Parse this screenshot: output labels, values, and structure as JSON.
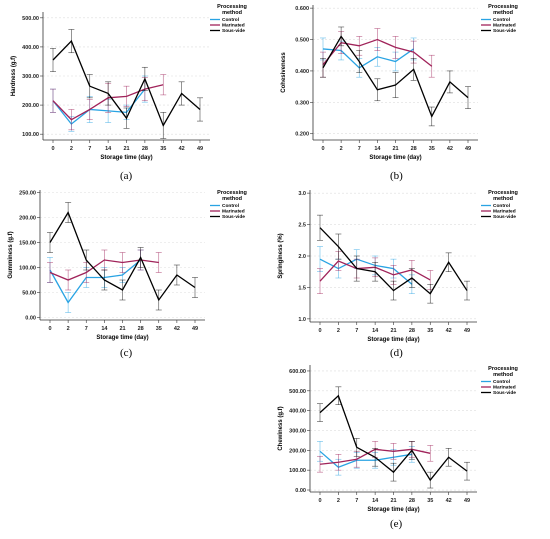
{
  "legend_title_line1": "Processing",
  "legend_title_line2": "method",
  "colors": {
    "Control": "#29a3e3",
    "Marinated": "#a0235a",
    "Sous-vide": "#000000"
  },
  "chart_data": [
    {
      "type": "line",
      "panel_label": "(a)",
      "xlabel": "Storage time (day)",
      "ylabel": "Hardness (g.f)",
      "categories": [
        "0",
        "2",
        "7",
        "14",
        "21",
        "28",
        "35",
        "42",
        "49"
      ],
      "ylim": [
        80,
        520
      ],
      "yticks": [
        "100.00",
        "200.00",
        "300.00",
        "400.00",
        "500.00"
      ],
      "ytick_values": [
        100,
        200,
        300,
        400,
        500
      ],
      "legend": [
        "Control",
        "Marinated",
        "Sous-vide"
      ],
      "series": [
        {
          "name": "Control",
          "values": [
            215,
            135,
            185,
            180,
            175,
            255,
            null,
            null,
            null
          ],
          "errors": [
            40,
            25,
            45,
            40,
            25,
            45,
            null,
            null,
            null
          ]
        },
        {
          "name": "Marinated",
          "values": [
            215,
            150,
            185,
            225,
            230,
            255,
            270,
            null,
            null
          ],
          "errors": [
            40,
            35,
            35,
            50,
            35,
            40,
            35,
            null,
            null
          ]
        },
        {
          "name": "Sous-vide",
          "values": [
            355,
            420,
            265,
            240,
            155,
            290,
            130,
            240,
            185
          ],
          "errors": [
            40,
            40,
            40,
            40,
            35,
            40,
            45,
            40,
            40
          ]
        }
      ]
    },
    {
      "type": "line",
      "panel_label": "(b)",
      "xlabel": "Storage time (day)",
      "ylabel": "Cohesiveness",
      "categories": [
        "0",
        "2",
        "7",
        "14",
        "21",
        "28",
        "35",
        "42",
        "49"
      ],
      "ylim": [
        0.18,
        0.61
      ],
      "yticks": [
        "0.200",
        "0.300",
        "0.400",
        "0.500",
        "0.600"
      ],
      "ytick_values": [
        0.2,
        0.3,
        0.4,
        0.5,
        0.6
      ],
      "legend": [
        "Control",
        "Marinated",
        "Sous-vide"
      ],
      "series": [
        {
          "name": "Control",
          "values": [
            0.47,
            0.465,
            0.41,
            0.445,
            0.43,
            0.47,
            null,
            null,
            null
          ],
          "errors": [
            0.035,
            0.03,
            0.03,
            0.03,
            0.03,
            0.035,
            null,
            null,
            null
          ]
        },
        {
          "name": "Marinated",
          "values": [
            0.42,
            0.49,
            0.48,
            0.5,
            0.475,
            0.46,
            0.415,
            null,
            null
          ],
          "errors": [
            0.04,
            0.035,
            0.03,
            0.035,
            0.035,
            0.035,
            0.035,
            null,
            null
          ]
        },
        {
          "name": "Sous-vide",
          "values": [
            0.41,
            0.51,
            0.43,
            0.34,
            0.355,
            0.405,
            0.255,
            0.365,
            0.315
          ],
          "errors": [
            0.03,
            0.03,
            0.035,
            0.035,
            0.04,
            0.035,
            0.03,
            0.035,
            0.035
          ]
        }
      ]
    },
    {
      "type": "line",
      "panel_label": "(c)",
      "xlabel": "Storage time (day)",
      "ylabel": "Gumminess (g.f)",
      "categories": [
        "0",
        "2",
        "7",
        "14",
        "21",
        "28",
        "35",
        "42",
        "49"
      ],
      "ylim": [
        -5,
        255
      ],
      "yticks": [
        "0.00",
        "50.00",
        "100.00",
        "150.00",
        "200.00",
        "250.00"
      ],
      "ytick_values": [
        0,
        50,
        100,
        150,
        200,
        250
      ],
      "legend": [
        "Control",
        "Marinated",
        "Sous-vide"
      ],
      "series": [
        {
          "name": "Control",
          "values": [
            95,
            30,
            80,
            80,
            85,
            115,
            null,
            null,
            null
          ],
          "errors": [
            25,
            20,
            20,
            20,
            15,
            20,
            null,
            null,
            null
          ]
        },
        {
          "name": "Marinated",
          "values": [
            90,
            75,
            90,
            115,
            110,
            115,
            110,
            null,
            null
          ],
          "errors": [
            20,
            20,
            20,
            20,
            20,
            20,
            20,
            null,
            null
          ]
        },
        {
          "name": "Sous-vide",
          "values": [
            150,
            210,
            115,
            75,
            55,
            120,
            35,
            85,
            60
          ],
          "errors": [
            20,
            20,
            20,
            20,
            20,
            20,
            20,
            20,
            20
          ]
        }
      ]
    },
    {
      "type": "line",
      "panel_label": "(d)",
      "xlabel": "Storage time (day)",
      "ylabel": "Springiness (%)",
      "categories": [
        "0",
        "2",
        "7",
        "14",
        "21",
        "28",
        "35",
        "42",
        "49"
      ],
      "ylim": [
        0.95,
        3.05
      ],
      "yticks": [
        "1.0",
        "1.5",
        "2.0",
        "2.5",
        "3.0"
      ],
      "ytick_values": [
        1.0,
        1.5,
        2.0,
        2.5,
        3.0
      ],
      "legend": [
        "Control",
        "Marinated",
        "Sous-vide"
      ],
      "series": [
        {
          "name": "Control",
          "values": [
            1.95,
            1.8,
            1.95,
            1.85,
            1.8,
            1.55,
            null,
            null,
            null
          ],
          "errors": [
            0.2,
            0.15,
            0.15,
            0.15,
            0.15,
            0.15,
            null,
            null,
            null
          ]
        },
        {
          "name": "Marinated",
          "values": [
            1.6,
            1.92,
            1.8,
            1.82,
            1.7,
            1.78,
            1.62,
            null,
            null
          ],
          "errors": [
            0.2,
            0.15,
            0.15,
            0.15,
            0.15,
            0.15,
            0.15,
            null,
            null
          ]
        },
        {
          "name": "Sous-vide",
          "values": [
            2.45,
            2.15,
            1.8,
            1.75,
            1.45,
            1.65,
            1.4,
            1.9,
            1.45
          ],
          "errors": [
            0.2,
            0.2,
            0.2,
            0.15,
            0.15,
            0.15,
            0.15,
            0.15,
            0.15
          ]
        }
      ]
    },
    {
      "type": "line",
      "panel_label": "(e)",
      "xlabel": "Storage time (day)",
      "ylabel": "Chewiness (g.f)",
      "categories": [
        "0",
        "2",
        "7",
        "14",
        "21",
        "28",
        "35",
        "42",
        "49"
      ],
      "ylim": [
        -10,
        630
      ],
      "yticks": [
        "0.00",
        "100.00",
        "200.00",
        "300.00",
        "400.00",
        "500.00",
        "600.00"
      ],
      "ytick_values": [
        0,
        100,
        200,
        300,
        400,
        500,
        600
      ],
      "legend": [
        "Control",
        "Marinated",
        "Sous-vide"
      ],
      "series": [
        {
          "name": "Control",
          "values": [
            195,
            115,
            150,
            150,
            165,
            180,
            null,
            null,
            null
          ],
          "errors": [
            50,
            40,
            40,
            40,
            40,
            40,
            null,
            null,
            null
          ]
        },
        {
          "name": "Marinated",
          "values": [
            130,
            140,
            155,
            205,
            195,
            205,
            185,
            null,
            null
          ],
          "errors": [
            40,
            40,
            40,
            40,
            40,
            40,
            40,
            null,
            null
          ]
        },
        {
          "name": "Sous-vide",
          "values": [
            390,
            475,
            215,
            165,
            90,
            200,
            50,
            165,
            95
          ],
          "errors": [
            45,
            45,
            45,
            45,
            45,
            45,
            40,
            45,
            45
          ]
        }
      ]
    }
  ]
}
